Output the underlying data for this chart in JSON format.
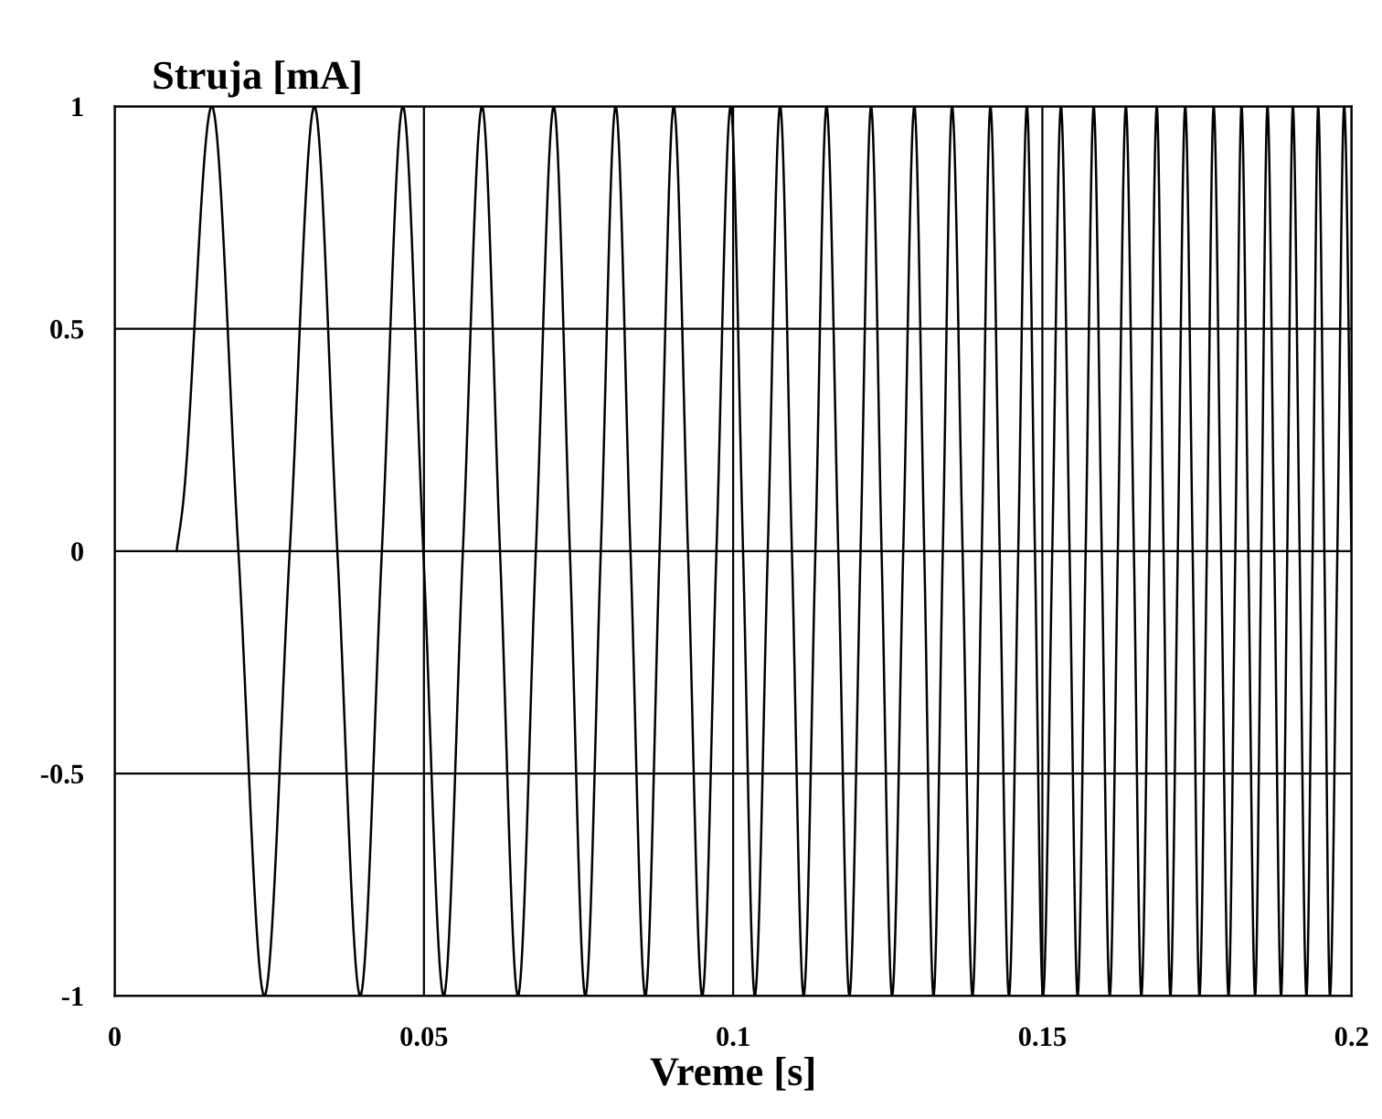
{
  "chart_data": {
    "type": "line",
    "ylabel": "Struja [mA]",
    "xlabel": "Vreme [s]",
    "x": [
      0.01,
      0.011,
      0.0157,
      0.02,
      0.0242,
      0.0283,
      0.0323,
      0.036,
      0.0397,
      0.0432,
      0.0466,
      0.0499,
      0.0532,
      0.0563,
      0.0594,
      0.0623,
      0.0652,
      0.0681,
      0.071,
      0.0736,
      0.0761,
      0.0786,
      0.081,
      0.0834,
      0.0858,
      0.0881,
      0.0904,
      0.0927,
      0.095,
      0.0973,
      0.0996,
      0.1016,
      0.1035,
      0.1056,
      0.1076,
      0.1095,
      0.1114,
      0.1133,
      0.1151,
      0.117,
      0.1188,
      0.1206,
      0.1223,
      0.124,
      0.1257,
      0.1275,
      0.1293,
      0.1309,
      0.1324,
      0.1339,
      0.1354,
      0.1371,
      0.1387,
      0.1402,
      0.1416,
      0.1431,
      0.1446,
      0.1461,
      0.1475,
      0.1488,
      0.1501,
      0.1516,
      0.153,
      0.1544,
      0.1557,
      0.157,
      0.1583,
      0.1596,
      0.1609,
      0.1622,
      0.1635,
      0.1648,
      0.166,
      0.1673,
      0.1685,
      0.1696,
      0.1707,
      0.1719,
      0.1731,
      0.1743,
      0.1754,
      0.1766,
      0.1777,
      0.1789,
      0.1801,
      0.1812,
      0.1822,
      0.1833,
      0.1844,
      0.1854,
      0.1864,
      0.1875,
      0.1886,
      0.1896,
      0.1905,
      0.1916,
      0.1927,
      0.1937,
      0.1946,
      0.1956,
      0.1965,
      0.1977,
      0.1988,
      0.2
    ],
    "values": [
      0,
      0.1,
      1,
      0,
      -1,
      0,
      1,
      0,
      -1,
      0,
      1,
      0,
      -1,
      0,
      1,
      0,
      -1,
      0,
      1,
      0,
      -1,
      0,
      1,
      0,
      -1,
      0,
      1,
      0,
      -1,
      0,
      1,
      0,
      -1,
      0,
      1,
      0,
      -1,
      0,
      1,
      0,
      -1,
      0,
      1,
      0,
      -1,
      0,
      1,
      0,
      -1,
      0,
      1,
      0,
      -1,
      0,
      1,
      0,
      -1,
      0,
      1,
      0,
      -1,
      0,
      1,
      0,
      -1,
      0,
      1,
      0,
      -1,
      0,
      1,
      0,
      -1,
      0,
      1,
      0,
      -1,
      0,
      1,
      0,
      -1,
      0,
      1,
      0,
      -1,
      0,
      1,
      0,
      -1,
      0,
      1,
      0,
      -1,
      0,
      1,
      0,
      -1,
      0,
      1,
      0,
      -1,
      0,
      1,
      0
    ],
    "color": "#000000",
    "xlim": [
      0,
      0.2
    ],
    "ylim": [
      -1,
      1
    ],
    "xticks": [
      0,
      0.05,
      0.1,
      0.15,
      0.2
    ],
    "yticks": [
      -1,
      -0.5,
      0,
      0.5,
      1
    ],
    "grid": true,
    "legend": false,
    "marker": "none",
    "line_style": "solid"
  }
}
